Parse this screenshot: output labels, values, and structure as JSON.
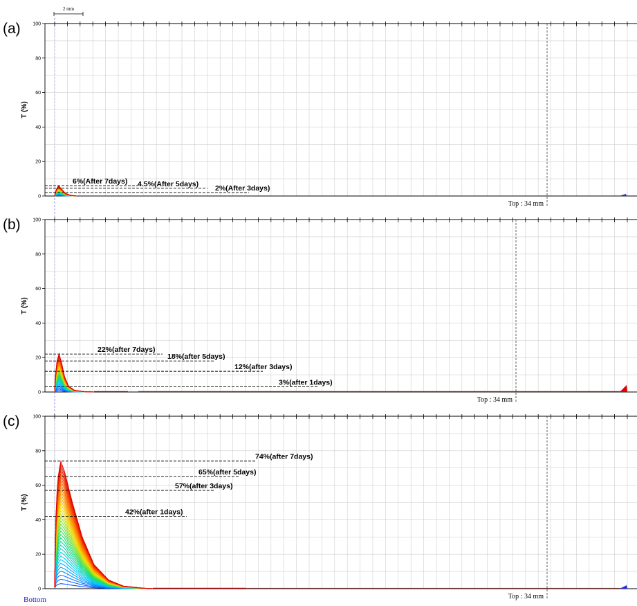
{
  "figure": {
    "scale_bar_label": "2 mm",
    "bottom_label": "Bottom"
  },
  "chart_data": [
    {
      "type": "area",
      "panel_label": "(a)",
      "ylabel": "T (%)",
      "ylim": [
        0,
        100
      ],
      "yticks": [
        "0",
        "20",
        "40",
        "60",
        "80",
        "100"
      ],
      "top_label": "Top : 34 mm",
      "series_colors": [
        "#1040ff",
        "#00c8ff",
        "#20e060",
        "#f0e000",
        "#ff7000",
        "#e00000"
      ],
      "peak_envelope": [
        {
          "x": 0.0,
          "y": 0
        },
        {
          "x": 0.15,
          "y": 3.5
        },
        {
          "x": 0.4,
          "y": 6
        },
        {
          "x": 0.7,
          "y": 4
        },
        {
          "x": 1.1,
          "y": 1.5
        },
        {
          "x": 1.6,
          "y": 0.4
        },
        {
          "x": 2.2,
          "y": 0
        }
      ],
      "annotations": [
        {
          "text": "6%(After 7days)",
          "value": 6
        },
        {
          "text": "4.5%(After 5days)",
          "value": 4.5
        },
        {
          "text": "2%(After 3days)",
          "value": 2
        }
      ]
    },
    {
      "type": "area",
      "panel_label": "(b)",
      "ylabel": "T (%)",
      "ylim": [
        0,
        100
      ],
      "yticks": [
        "0",
        "20",
        "40",
        "60",
        "80",
        "100"
      ],
      "top_label": "Top : 34 mm",
      "series_colors": [
        "#1040ff",
        "#00c8ff",
        "#20e060",
        "#f0e000",
        "#ff7000",
        "#e00000"
      ],
      "peak_envelope": [
        {
          "x": 0.0,
          "y": 1
        },
        {
          "x": 0.1,
          "y": 10
        },
        {
          "x": 0.25,
          "y": 18
        },
        {
          "x": 0.45,
          "y": 22
        },
        {
          "x": 0.7,
          "y": 17
        },
        {
          "x": 1.0,
          "y": 9
        },
        {
          "x": 1.4,
          "y": 3.5
        },
        {
          "x": 2.0,
          "y": 1
        },
        {
          "x": 3.0,
          "y": 0.2
        },
        {
          "x": 4.0,
          "y": 0
        }
      ],
      "annotations": [
        {
          "text": "22%(after 7days)",
          "value": 22
        },
        {
          "text": "18%(after 5days)",
          "value": 18
        },
        {
          "text": "12%(after 3days)",
          "value": 12
        },
        {
          "text": "3%(after 1days)",
          "value": 3
        }
      ]
    },
    {
      "type": "area",
      "panel_label": "(c)",
      "ylabel": "T (%)",
      "ylim": [
        0,
        100
      ],
      "yticks": [
        "0",
        "20",
        "40",
        "60",
        "80",
        "100"
      ],
      "top_label": "Top : 34 mm",
      "series_colors": [
        "#1040ff",
        "#00c8ff",
        "#20e060",
        "#f0e000",
        "#ff7000",
        "#e00000"
      ],
      "peak_envelope": [
        {
          "x": 0.0,
          "y": 1
        },
        {
          "x": 0.12,
          "y": 40
        },
        {
          "x": 0.3,
          "y": 62
        },
        {
          "x": 0.6,
          "y": 74
        },
        {
          "x": 1.0,
          "y": 68
        },
        {
          "x": 1.8,
          "y": 50
        },
        {
          "x": 2.8,
          "y": 30
        },
        {
          "x": 4.0,
          "y": 14
        },
        {
          "x": 5.5,
          "y": 5
        },
        {
          "x": 7.0,
          "y": 1.5
        },
        {
          "x": 9.0,
          "y": 0.3
        },
        {
          "x": 10.0,
          "y": 0
        }
      ],
      "annotations": [
        {
          "text": "74%(after 7days)",
          "value": 74
        },
        {
          "text": "65%(after 5days)",
          "value": 65
        },
        {
          "text": "57%(after 3days)",
          "value": 57
        },
        {
          "text": "42%(after 1days)",
          "value": 42
        }
      ]
    }
  ]
}
